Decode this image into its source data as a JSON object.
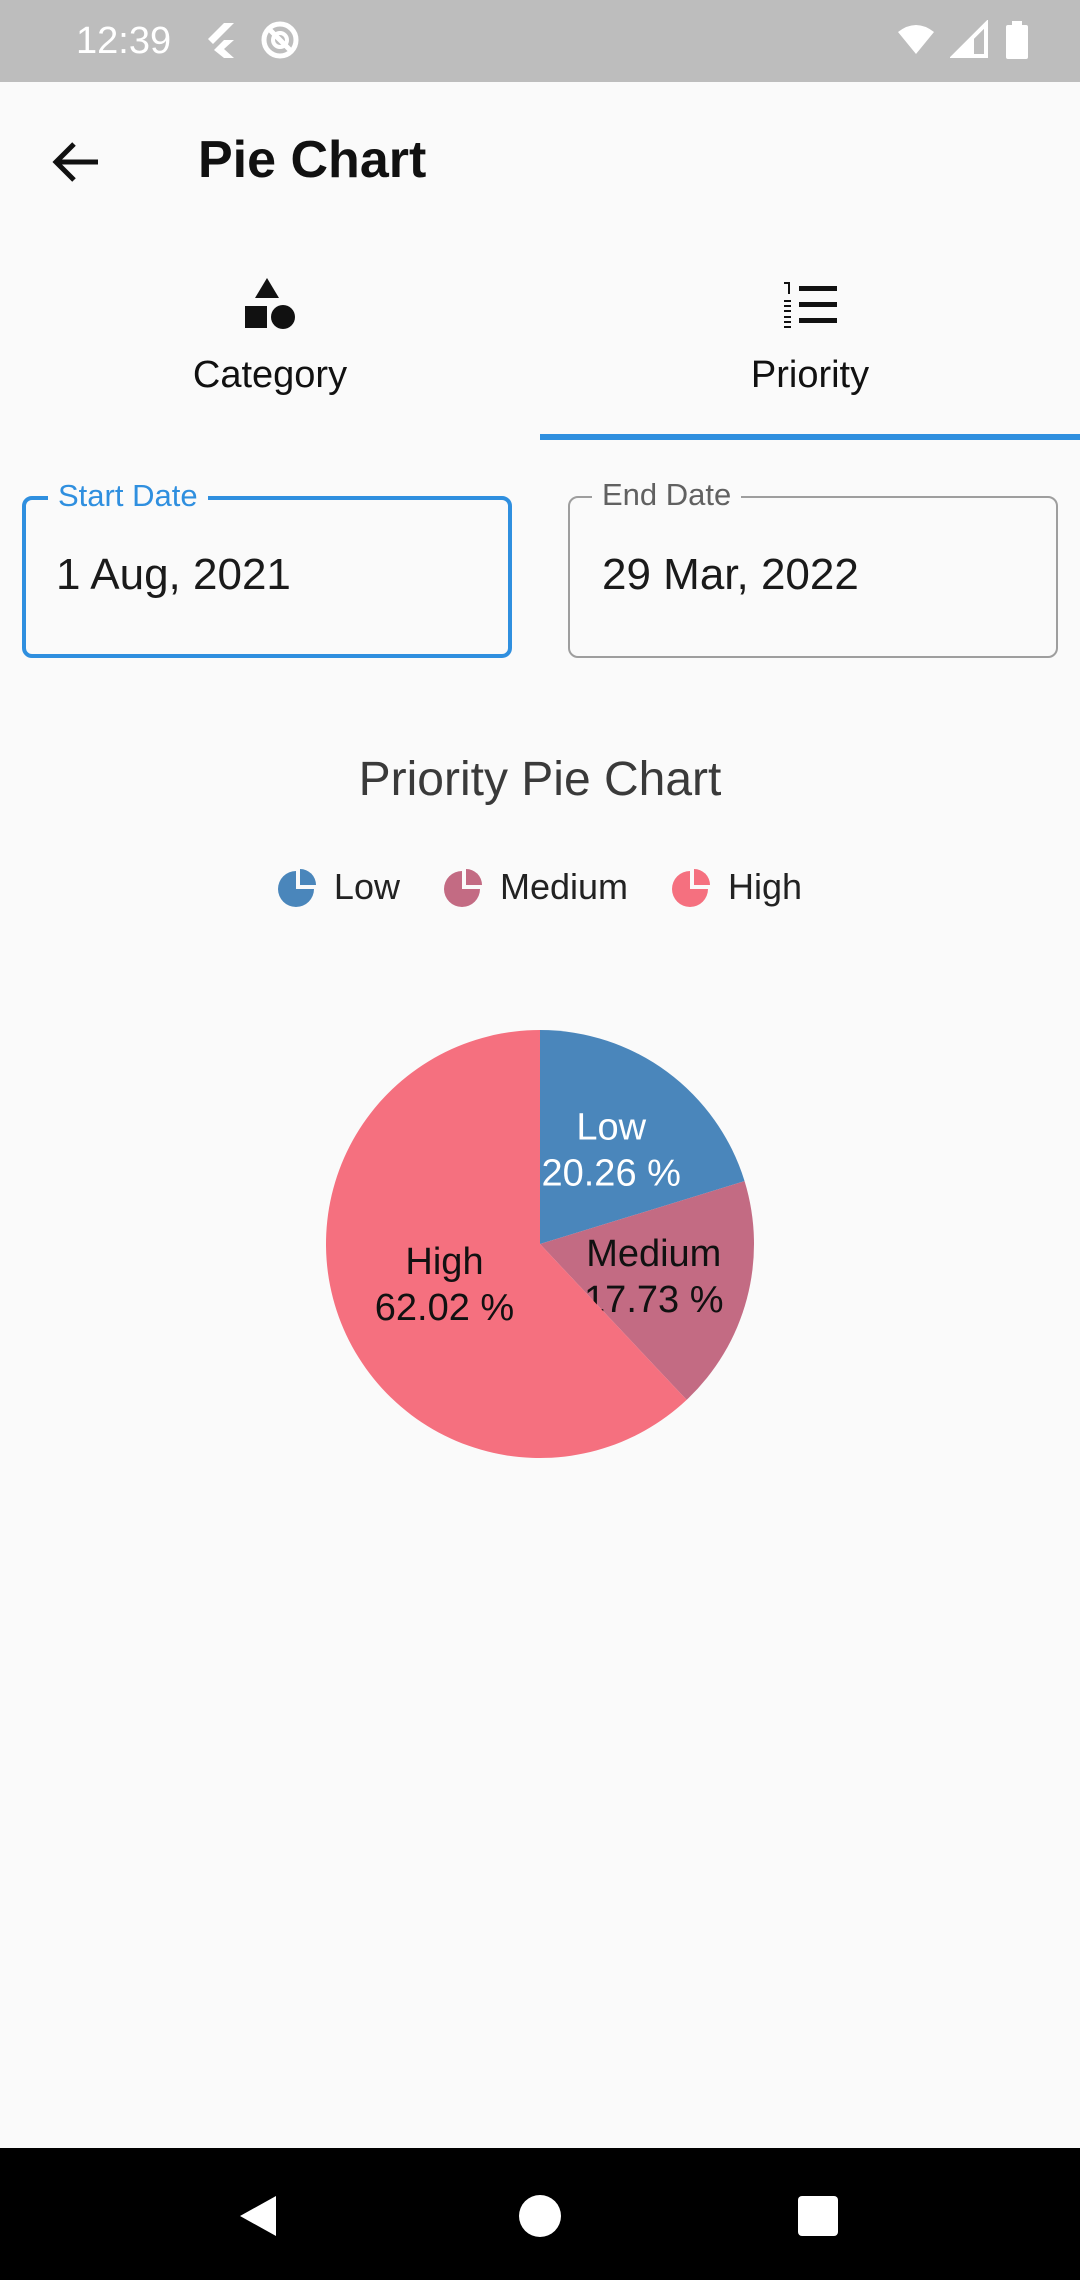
{
  "status_bar": {
    "time": "12:39"
  },
  "app_bar": {
    "title": "Pie Chart"
  },
  "tabs": [
    {
      "label": "Category",
      "icon": "shapes-icon",
      "selected": false
    },
    {
      "label": "Priority",
      "icon": "numbered-list-icon",
      "selected": true
    }
  ],
  "filters": {
    "start_date": {
      "label": "Start Date",
      "value": "1 Aug, 2021"
    },
    "end_date": {
      "label": "End Date",
      "value": "29 Mar, 2022"
    }
  },
  "colors": {
    "accent": "#2f8fdf",
    "low": "#4a86bb",
    "medium": "#c36b83",
    "high": "#f5707f"
  },
  "chart_data": {
    "type": "pie",
    "title": "Priority Pie Chart",
    "legend_position": "top",
    "categories": [
      "Low",
      "Medium",
      "High"
    ],
    "values": [
      20.26,
      17.73,
      62.02
    ],
    "labels": [
      "Low\n20.26 %",
      "Medium\n17.73 %",
      "High\n62.02 %"
    ]
  }
}
